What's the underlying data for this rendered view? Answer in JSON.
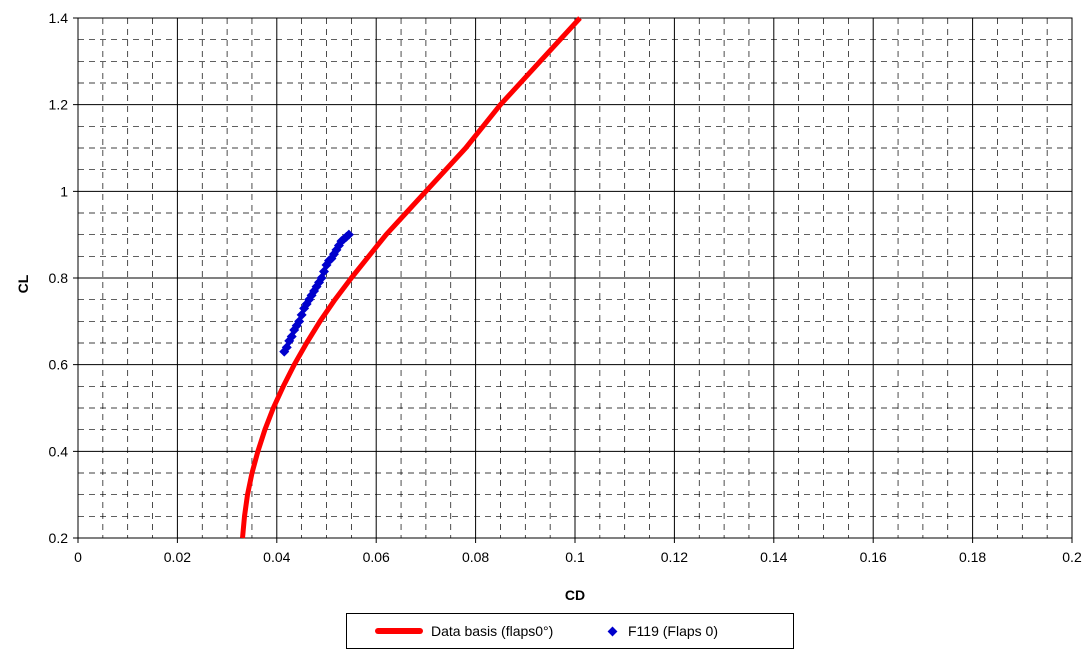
{
  "chart_data": {
    "type": "line",
    "xlabel": "CD",
    "ylabel": "CL",
    "xlim": [
      0,
      0.2
    ],
    "ylim": [
      0.2,
      1.4
    ],
    "x_ticks": [
      "0",
      "0.02",
      "0.04",
      "0.06",
      "0.08",
      "0.1",
      "0.12",
      "0.14",
      "0.16",
      "0.18",
      "0.2"
    ],
    "y_ticks": [
      "0.2",
      "0.4",
      "0.6",
      "0.8",
      "1",
      "1.2",
      "1.4"
    ],
    "grid": true,
    "legend_position": "bottom",
    "series": [
      {
        "name": "Data basis (flaps0°)",
        "kind": "line",
        "color": "#ff0000",
        "points": [
          [
            0.0331,
            0.2
          ],
          [
            0.0335,
            0.25
          ],
          [
            0.0341,
            0.3
          ],
          [
            0.035,
            0.35
          ],
          [
            0.0362,
            0.4
          ],
          [
            0.0376,
            0.45
          ],
          [
            0.0393,
            0.5
          ],
          [
            0.0413,
            0.55
          ],
          [
            0.0435,
            0.6
          ],
          [
            0.046,
            0.65
          ],
          [
            0.0487,
            0.7
          ],
          [
            0.0517,
            0.75
          ],
          [
            0.055,
            0.8
          ],
          [
            0.0585,
            0.85
          ],
          [
            0.062,
            0.9
          ],
          [
            0.066,
            0.95
          ],
          [
            0.07,
            1.0
          ],
          [
            0.074,
            1.05
          ],
          [
            0.078,
            1.1
          ],
          [
            0.085,
            1.2
          ],
          [
            0.093,
            1.3
          ],
          [
            0.101,
            1.4
          ]
        ]
      },
      {
        "name": "F119 (Flaps 0)",
        "kind": "scatter",
        "marker": "diamond",
        "color": "#0000cc",
        "points": [
          [
            0.0415,
            0.63
          ],
          [
            0.042,
            0.64
          ],
          [
            0.0425,
            0.655
          ],
          [
            0.043,
            0.665
          ],
          [
            0.0435,
            0.68
          ],
          [
            0.044,
            0.69
          ],
          [
            0.0445,
            0.7
          ],
          [
            0.045,
            0.715
          ],
          [
            0.0455,
            0.73
          ],
          [
            0.046,
            0.74
          ],
          [
            0.0465,
            0.75
          ],
          [
            0.047,
            0.76
          ],
          [
            0.0475,
            0.77
          ],
          [
            0.048,
            0.78
          ],
          [
            0.0485,
            0.79
          ],
          [
            0.049,
            0.8
          ],
          [
            0.0495,
            0.815
          ],
          [
            0.05,
            0.83
          ],
          [
            0.0505,
            0.84
          ],
          [
            0.051,
            0.845
          ],
          [
            0.0515,
            0.855
          ],
          [
            0.052,
            0.865
          ],
          [
            0.0525,
            0.875
          ],
          [
            0.053,
            0.885
          ],
          [
            0.0535,
            0.89
          ],
          [
            0.054,
            0.895
          ],
          [
            0.0545,
            0.9
          ]
        ]
      }
    ]
  }
}
